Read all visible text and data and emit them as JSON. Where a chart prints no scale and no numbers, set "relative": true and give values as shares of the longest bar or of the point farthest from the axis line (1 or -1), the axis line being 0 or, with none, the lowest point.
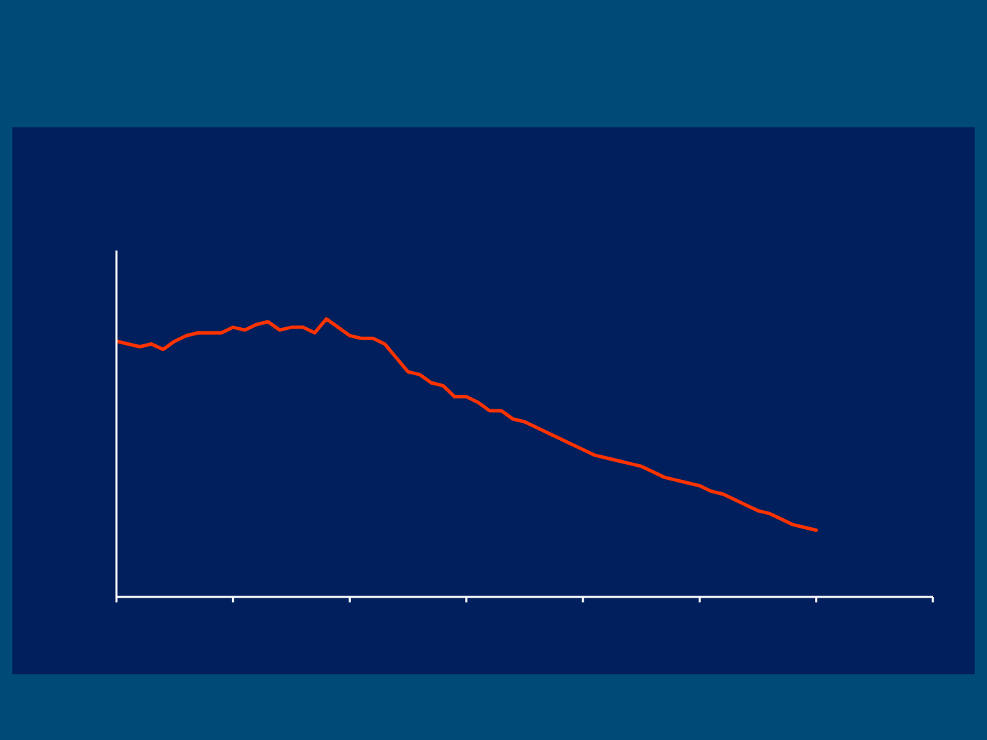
{
  "chart_data": {
    "type": "line",
    "relative": true,
    "color": "#ff3300",
    "categories": [
      null,
      null,
      null,
      null,
      null,
      null,
      null,
      null,
      null,
      null,
      null,
      null,
      null,
      null,
      null,
      null,
      null,
      null,
      null,
      null,
      null,
      null,
      null,
      null,
      null,
      null,
      null,
      null,
      null,
      null,
      null,
      null,
      null,
      null,
      null,
      null,
      null,
      null,
      null,
      null,
      null,
      null,
      null,
      null,
      null,
      null,
      null,
      null,
      null,
      null,
      null,
      null,
      null,
      null,
      null,
      null,
      null,
      null,
      null,
      null,
      null,
      null,
      null,
      null,
      null,
      null,
      null,
      null,
      null,
      null,
      null
    ],
    "values": [
      0.92,
      0.91,
      0.9,
      0.91,
      0.89,
      0.92,
      0.94,
      0.95,
      0.95,
      0.95,
      0.97,
      0.96,
      0.98,
      0.99,
      0.96,
      0.97,
      0.97,
      0.95,
      1,
      0.97,
      0.94,
      0.93,
      0.93,
      0.91,
      0.86,
      0.81,
      0.8,
      0.77,
      0.76,
      0.72,
      0.72,
      0.7,
      0.67,
      0.67,
      0.64,
      0.63,
      0.61,
      0.59,
      0.57,
      0.55,
      0.53,
      0.51,
      0.5,
      0.49,
      0.48,
      0.47,
      0.45,
      0.43,
      0.42,
      0.41,
      0.4,
      0.38,
      0.37,
      0.35,
      0.33,
      0.31,
      0.3,
      0.28,
      0.26,
      0.25,
      0.24,
      null,
      null,
      null,
      null,
      null,
      null,
      null,
      null,
      null,
      null
    ]
  }
}
